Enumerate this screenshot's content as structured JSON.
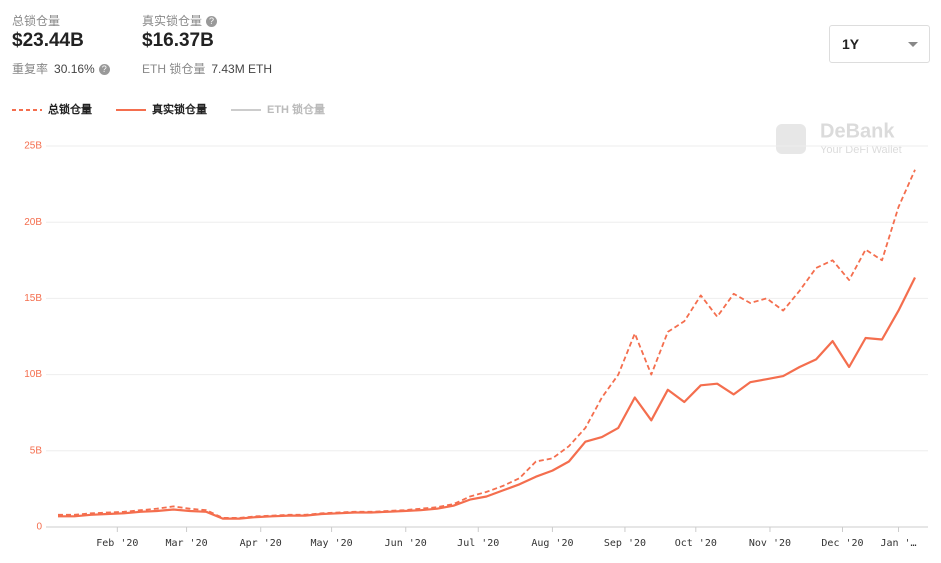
{
  "header": {
    "total_label": "总锁仓量",
    "total_value": "$23.44B",
    "dup_label": "重复率",
    "dup_value": "30.16%",
    "real_label": "真实锁仓量",
    "real_value": "$16.37B",
    "eth_label": "ETH 锁仓量",
    "eth_value": "7.43M ETH",
    "range": "1Y"
  },
  "watermark": {
    "brand": "DeBank",
    "tagline": "Your DeFi Wallet"
  },
  "chart_data": {
    "type": "line",
    "xlim": [
      0,
      52
    ],
    "xticks": [
      {
        "value": 3.6,
        "label": "Feb '20"
      },
      {
        "value": 7.8,
        "label": "Mar '20"
      },
      {
        "value": 12.3,
        "label": "Apr '20"
      },
      {
        "value": 16.6,
        "label": "May '20"
      },
      {
        "value": 21.1,
        "label": "Jun '20"
      },
      {
        "value": 25.5,
        "label": "Jul '20"
      },
      {
        "value": 30,
        "label": "Aug '20"
      },
      {
        "value": 34.4,
        "label": "Sep '20"
      },
      {
        "value": 38.7,
        "label": "Oct '20"
      },
      {
        "value": 43.2,
        "label": "Nov '20"
      },
      {
        "value": 47.6,
        "label": "Dec '20"
      },
      {
        "value": 51,
        "label": "Jan '…"
      }
    ],
    "ylim": [
      0,
      25
    ],
    "yticks": [
      0,
      {
        "value": 5,
        "label": "5B"
      },
      {
        "value": 10,
        "label": "10B"
      },
      {
        "value": 15,
        "label": "15B"
      },
      {
        "value": 20,
        "label": "20B"
      },
      {
        "value": 25,
        "label": "25B"
      }
    ],
    "grid": true,
    "series": [
      {
        "name": "总锁仓量",
        "color": "#f46e4e",
        "dash": true,
        "values": [
          0.8,
          0.8,
          0.9,
          0.95,
          1.0,
          1.1,
          1.2,
          1.35,
          1.2,
          1.1,
          0.6,
          0.6,
          0.7,
          0.75,
          0.8,
          0.8,
          0.9,
          0.95,
          1.0,
          1.0,
          1.05,
          1.1,
          1.2,
          1.3,
          1.5,
          2.0,
          2.3,
          2.7,
          3.2,
          4.3,
          4.5,
          5.3,
          6.5,
          8.5,
          10.0,
          12.7,
          10.0,
          12.8,
          13.5,
          15.2,
          13.8,
          15.3,
          14.7,
          15.0,
          14.2,
          15.5,
          17.0,
          17.5,
          16.2,
          18.2,
          17.5,
          21.0,
          23.44
        ]
      },
      {
        "name": "真实锁仓量",
        "color": "#f46e4e",
        "dash": false,
        "values": [
          0.7,
          0.7,
          0.8,
          0.85,
          0.9,
          1.0,
          1.05,
          1.15,
          1.05,
          1.0,
          0.55,
          0.55,
          0.65,
          0.7,
          0.75,
          0.75,
          0.85,
          0.9,
          0.95,
          0.95,
          1.0,
          1.05,
          1.1,
          1.2,
          1.4,
          1.8,
          2.0,
          2.4,
          2.8,
          3.3,
          3.7,
          4.3,
          5.6,
          5.9,
          6.5,
          8.5,
          7.0,
          9.0,
          8.2,
          9.3,
          9.4,
          8.7,
          9.5,
          9.7,
          9.9,
          10.5,
          11.0,
          12.2,
          10.5,
          12.4,
          12.3,
          14.2,
          16.37
        ]
      },
      {
        "name": "ETH 锁仓量",
        "color": "#cccccc",
        "disabled": true,
        "values": []
      }
    ]
  }
}
